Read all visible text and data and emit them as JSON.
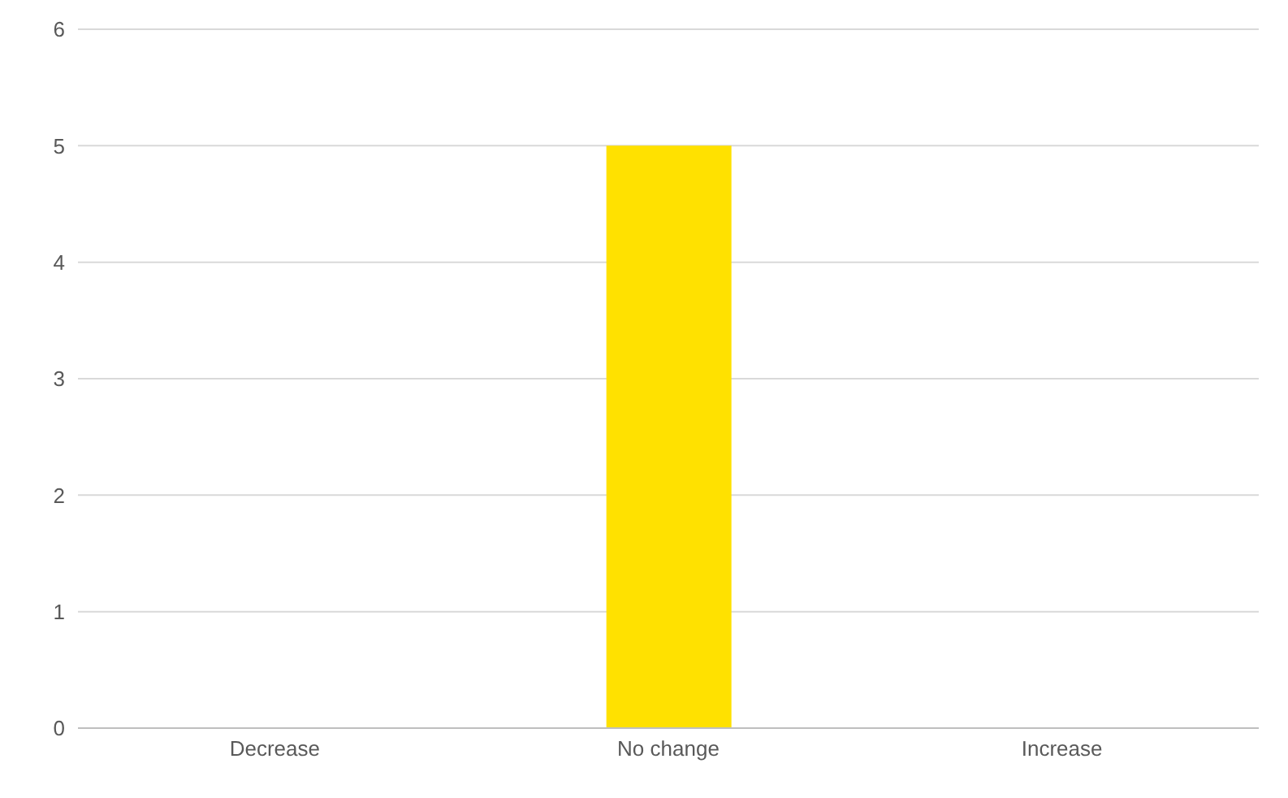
{
  "chart_data": {
    "type": "bar",
    "categories": [
      "Decrease",
      "No change",
      "Increase"
    ],
    "values": [
      0,
      5,
      0
    ],
    "color": "#ffe100",
    "ylim": [
      0,
      6
    ],
    "yticks": [
      0,
      1,
      2,
      3,
      4,
      5,
      6
    ],
    "grid": "y"
  }
}
